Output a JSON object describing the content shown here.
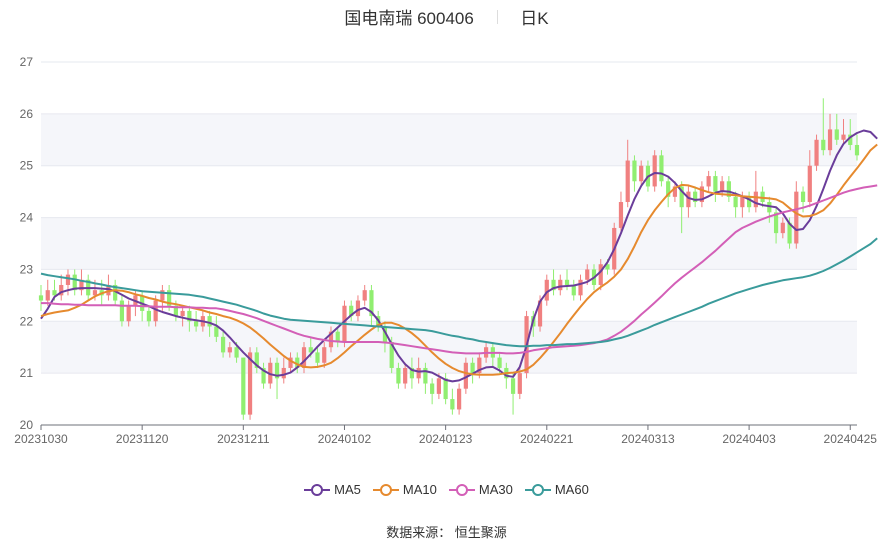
{
  "title": {
    "name": "国电南瑞 600406",
    "period": "日K"
  },
  "source_text": "数据来源： 恒生聚源",
  "chart_data": {
    "type": "candlestick",
    "title": "国电南瑞 600406",
    "ylim": [
      20,
      27
    ],
    "yticks": [
      "20",
      "21",
      "22",
      "23",
      "24",
      "25",
      "26",
      "27"
    ],
    "xticks": [
      "20231030",
      "20231120",
      "20231211",
      "20240102",
      "20240123",
      "20240221",
      "20240313",
      "20240403",
      "20240425"
    ],
    "xtick_index": [
      0,
      15,
      30,
      45,
      60,
      75,
      90,
      105,
      120
    ],
    "up_color": "#f08080",
    "down_color": "#90ee70",
    "grid": true,
    "legend_position": "bottom",
    "series": [
      {
        "name": "MA5",
        "color": "#6a3d9a",
        "values": [
          22.05,
          22.24,
          22.47,
          22.56,
          22.6,
          22.63,
          22.64,
          22.64,
          22.64,
          22.63,
          22.62,
          22.58,
          22.51,
          22.44,
          22.39,
          22.34,
          22.29,
          22.23,
          22.18,
          22.14,
          22.1,
          22.07,
          22.04,
          22.02,
          22.0,
          21.97,
          21.92,
          21.82,
          21.69,
          21.54,
          21.4,
          21.27,
          21.15,
          21.05,
          20.98,
          20.95,
          20.97,
          21.01,
          21.11,
          21.23,
          21.37,
          21.51,
          21.64,
          21.76,
          21.88,
          22.0,
          22.12,
          22.22,
          22.26,
          22.18,
          22.02,
          21.8,
          21.56,
          21.34,
          21.17,
          21.06,
          21.03,
          21.04,
          21.01,
          20.94,
          20.87,
          20.84,
          20.86,
          20.92,
          20.99,
          21.06,
          21.11,
          21.12,
          21.05,
          20.95,
          20.93,
          21.12,
          21.53,
          22.03,
          22.38,
          22.56,
          22.64,
          22.67,
          22.68,
          22.69,
          22.72,
          22.76,
          22.84,
          22.96,
          23.14,
          23.39,
          23.7,
          24.04,
          24.36,
          24.61,
          24.79,
          24.86,
          24.85,
          24.79,
          24.67,
          24.51,
          24.38,
          24.34,
          24.35,
          24.41,
          24.48,
          24.51,
          24.5,
          24.46,
          24.41,
          24.35,
          24.28,
          24.24,
          24.22,
          24.2,
          24.08,
          23.88,
          23.76,
          23.78,
          23.95,
          24.22,
          24.55,
          24.9,
          25.2,
          25.42,
          25.55,
          25.63,
          25.68,
          25.65,
          25.52
        ]
      },
      {
        "name": "MA10",
        "color": "#e68a2e",
        "values": [
          22.1,
          22.14,
          22.17,
          22.19,
          22.21,
          22.26,
          22.32,
          22.4,
          22.48,
          22.54,
          22.58,
          22.6,
          22.59,
          22.56,
          22.52,
          22.49,
          22.45,
          22.42,
          22.38,
          22.35,
          22.33,
          22.3,
          22.27,
          22.24,
          22.21,
          22.17,
          22.14,
          22.1,
          22.07,
          22.02,
          21.96,
          21.88,
          21.78,
          21.67,
          21.55,
          21.44,
          21.33,
          21.24,
          21.17,
          21.12,
          21.11,
          21.12,
          21.15,
          21.2,
          21.29,
          21.4,
          21.52,
          21.63,
          21.74,
          21.84,
          21.93,
          21.97,
          21.97,
          21.93,
          21.86,
          21.77,
          21.66,
          21.53,
          21.4,
          21.28,
          21.18,
          21.1,
          21.04,
          21.0,
          20.98,
          20.97,
          20.97,
          20.97,
          20.98,
          21.0,
          21.01,
          21.03,
          21.07,
          21.16,
          21.29,
          21.44,
          21.6,
          21.77,
          21.95,
          22.12,
          22.28,
          22.43,
          22.56,
          22.66,
          22.75,
          22.86,
          23.0,
          23.2,
          23.45,
          23.72,
          23.95,
          24.14,
          24.3,
          24.45,
          24.57,
          24.63,
          24.62,
          24.58,
          24.53,
          24.49,
          24.46,
          24.45,
          24.44,
          24.43,
          24.41,
          24.4,
          24.39,
          24.38,
          24.37,
          24.35,
          24.29,
          24.18,
          24.08,
          24.02,
          24.03,
          24.07,
          24.14,
          24.27,
          24.44,
          24.62,
          24.79,
          24.95,
          25.12,
          25.3,
          25.41
        ]
      },
      {
        "name": "MA30",
        "color": "#d35fb7",
        "values": [
          22.35,
          22.35,
          22.34,
          22.33,
          22.33,
          22.32,
          22.32,
          22.31,
          22.31,
          22.31,
          22.31,
          22.31,
          22.3,
          22.3,
          22.3,
          22.29,
          22.29,
          22.28,
          22.28,
          22.28,
          22.27,
          22.27,
          22.27,
          22.26,
          22.26,
          22.25,
          22.25,
          22.23,
          22.2,
          22.17,
          22.14,
          22.1,
          22.06,
          22.01,
          21.96,
          21.91,
          21.86,
          21.81,
          21.76,
          21.72,
          21.69,
          21.66,
          21.64,
          21.62,
          21.61,
          21.6,
          21.6,
          21.6,
          21.6,
          21.6,
          21.6,
          21.59,
          21.58,
          21.56,
          21.54,
          21.52,
          21.5,
          21.48,
          21.46,
          21.44,
          21.42,
          21.4,
          21.39,
          21.38,
          21.38,
          21.38,
          21.39,
          21.39,
          21.39,
          21.38,
          21.38,
          21.39,
          21.41,
          21.44,
          21.46,
          21.48,
          21.5,
          21.51,
          21.52,
          21.53,
          21.54,
          21.56,
          21.58,
          21.61,
          21.65,
          21.72,
          21.8,
          21.9,
          22.01,
          22.13,
          22.24,
          22.36,
          22.48,
          22.61,
          22.73,
          22.84,
          22.94,
          23.04,
          23.14,
          23.25,
          23.36,
          23.48,
          23.6,
          23.72,
          23.8,
          23.86,
          23.92,
          23.97,
          24.02,
          24.06,
          24.1,
          24.13,
          24.16,
          24.19,
          24.23,
          24.28,
          24.33,
          24.38,
          24.43,
          24.48,
          24.52,
          24.55,
          24.58,
          24.6,
          24.62
        ]
      },
      {
        "name": "MA60",
        "color": "#3a9b9b",
        "values": [
          22.92,
          22.89,
          22.87,
          22.85,
          22.83,
          22.81,
          22.78,
          22.76,
          22.73,
          22.71,
          22.68,
          22.66,
          22.64,
          22.62,
          22.6,
          22.58,
          22.57,
          22.56,
          22.55,
          22.54,
          22.53,
          22.52,
          22.51,
          22.49,
          22.47,
          22.44,
          22.41,
          22.38,
          22.35,
          22.32,
          22.28,
          22.24,
          22.2,
          22.15,
          22.11,
          22.08,
          22.05,
          22.03,
          22.02,
          22.01,
          22.0,
          21.99,
          21.98,
          21.97,
          21.96,
          21.95,
          21.94,
          21.93,
          21.92,
          21.91,
          21.9,
          21.89,
          21.88,
          21.87,
          21.86,
          21.85,
          21.84,
          21.83,
          21.81,
          21.78,
          21.75,
          21.72,
          21.7,
          21.67,
          21.65,
          21.62,
          21.6,
          21.58,
          21.56,
          21.54,
          21.53,
          21.52,
          21.52,
          21.53,
          21.53,
          21.54,
          21.54,
          21.55,
          21.56,
          21.56,
          21.57,
          21.58,
          21.59,
          21.6,
          21.62,
          21.65,
          21.68,
          21.72,
          21.77,
          21.82,
          21.87,
          21.93,
          21.98,
          22.03,
          22.08,
          22.13,
          22.18,
          22.23,
          22.28,
          22.34,
          22.39,
          22.44,
          22.49,
          22.54,
          22.58,
          22.62,
          22.66,
          22.7,
          22.73,
          22.76,
          22.79,
          22.81,
          22.83,
          22.85,
          22.88,
          22.92,
          22.97,
          23.03,
          23.1,
          23.17,
          23.25,
          23.33,
          23.41,
          23.49,
          23.6
        ]
      }
    ],
    "candles": [
      [
        22.5,
        22.4,
        22.7,
        22.2
      ],
      [
        22.4,
        22.6,
        22.8,
        22.3
      ],
      [
        22.6,
        22.5,
        22.8,
        22.4
      ],
      [
        22.5,
        22.7,
        22.9,
        22.4
      ],
      [
        22.7,
        22.9,
        23.0,
        22.5
      ],
      [
        22.9,
        22.6,
        23.0,
        22.5
      ],
      [
        22.6,
        22.8,
        23.0,
        22.5
      ],
      [
        22.8,
        22.5,
        22.9,
        22.4
      ],
      [
        22.5,
        22.6,
        22.8,
        22.4
      ],
      [
        22.6,
        22.5,
        22.8,
        22.3
      ],
      [
        22.5,
        22.7,
        22.9,
        22.4
      ],
      [
        22.7,
        22.4,
        22.8,
        22.3
      ],
      [
        22.4,
        22.0,
        22.5,
        21.9
      ],
      [
        22.0,
        22.3,
        22.4,
        21.9
      ],
      [
        22.3,
        22.5,
        22.6,
        22.1
      ],
      [
        22.5,
        22.2,
        22.6,
        22.0
      ],
      [
        22.2,
        22.0,
        22.3,
        21.9
      ],
      [
        22.0,
        22.4,
        22.5,
        21.9
      ],
      [
        22.4,
        22.6,
        22.7,
        22.2
      ],
      [
        22.6,
        22.3,
        22.7,
        22.2
      ],
      [
        22.3,
        22.1,
        22.4,
        22.0
      ],
      [
        22.1,
        22.2,
        22.3,
        21.9
      ],
      [
        22.2,
        22.0,
        22.3,
        21.8
      ],
      [
        22.0,
        21.9,
        22.2,
        21.8
      ],
      [
        21.9,
        22.1,
        22.2,
        21.8
      ],
      [
        22.1,
        21.9,
        22.2,
        21.7
      ],
      [
        21.9,
        21.7,
        22.1,
        21.6
      ],
      [
        21.7,
        21.4,
        21.8,
        21.3
      ],
      [
        21.4,
        21.5,
        21.6,
        21.3
      ],
      [
        21.5,
        21.3,
        21.6,
        21.2
      ],
      [
        21.3,
        20.2,
        21.3,
        20.1
      ],
      [
        20.2,
        21.4,
        21.5,
        20.1
      ],
      [
        21.4,
        21.1,
        21.5,
        21.0
      ],
      [
        21.1,
        20.8,
        21.2,
        20.7
      ],
      [
        20.8,
        21.2,
        21.3,
        20.7
      ],
      [
        21.2,
        20.9,
        21.3,
        20.5
      ],
      [
        20.9,
        21.1,
        21.3,
        20.8
      ],
      [
        21.1,
        21.3,
        21.4,
        21.0
      ],
      [
        21.3,
        21.1,
        21.4,
        21.0
      ],
      [
        21.1,
        21.5,
        21.6,
        21.0
      ],
      [
        21.5,
        21.4,
        21.7,
        21.3
      ],
      [
        21.4,
        21.2,
        21.5,
        21.1
      ],
      [
        21.2,
        21.5,
        21.6,
        21.1
      ],
      [
        21.5,
        21.8,
        21.9,
        21.4
      ],
      [
        21.8,
        21.6,
        21.9,
        21.5
      ],
      [
        21.6,
        22.3,
        22.4,
        21.5
      ],
      [
        22.3,
        22.1,
        22.4,
        22.0
      ],
      [
        22.1,
        22.4,
        22.5,
        22.0
      ],
      [
        22.4,
        22.6,
        22.7,
        22.3
      ],
      [
        22.6,
        22.1,
        22.7,
        21.9
      ],
      [
        22.1,
        21.9,
        22.2,
        21.8
      ],
      [
        21.9,
        21.6,
        22.0,
        21.4
      ],
      [
        21.6,
        21.1,
        21.7,
        21.0
      ],
      [
        21.1,
        20.8,
        21.2,
        20.7
      ],
      [
        20.8,
        21.1,
        21.2,
        20.7
      ],
      [
        21.1,
        20.9,
        21.3,
        20.7
      ],
      [
        20.9,
        21.1,
        21.3,
        20.8
      ],
      [
        21.1,
        20.8,
        21.2,
        20.6
      ],
      [
        20.8,
        20.6,
        20.9,
        20.4
      ],
      [
        20.6,
        20.9,
        21.0,
        20.5
      ],
      [
        20.9,
        20.5,
        21.0,
        20.4
      ],
      [
        20.5,
        20.3,
        20.7,
        20.2
      ],
      [
        20.3,
        20.7,
        20.8,
        20.2
      ],
      [
        20.7,
        21.2,
        21.3,
        20.6
      ],
      [
        21.2,
        21.0,
        21.3,
        20.8
      ],
      [
        21.0,
        21.3,
        21.4,
        20.9
      ],
      [
        21.3,
        21.5,
        21.6,
        21.2
      ],
      [
        21.5,
        21.3,
        21.6,
        21.1
      ],
      [
        21.3,
        21.1,
        21.4,
        21.0
      ],
      [
        21.1,
        20.9,
        21.2,
        20.7
      ],
      [
        20.9,
        20.6,
        21.0,
        20.2
      ],
      [
        20.6,
        21.0,
        21.1,
        20.5
      ],
      [
        21.0,
        22.1,
        22.2,
        20.9
      ],
      [
        22.1,
        21.9,
        22.2,
        21.7
      ],
      [
        21.9,
        22.4,
        22.5,
        21.8
      ],
      [
        22.4,
        22.8,
        22.9,
        22.3
      ],
      [
        22.8,
        22.6,
        23.0,
        22.5
      ],
      [
        22.6,
        22.8,
        22.9,
        22.5
      ],
      [
        22.8,
        22.7,
        23.0,
        22.6
      ],
      [
        22.7,
        22.5,
        22.8,
        22.4
      ],
      [
        22.5,
        22.8,
        22.9,
        22.4
      ],
      [
        22.8,
        23.0,
        23.1,
        22.7
      ],
      [
        23.0,
        22.7,
        23.1,
        22.6
      ],
      [
        22.7,
        23.1,
        23.2,
        22.6
      ],
      [
        23.1,
        23.0,
        23.2,
        22.9
      ],
      [
        23.0,
        23.8,
        23.9,
        22.9
      ],
      [
        23.8,
        24.3,
        24.5,
        23.7
      ],
      [
        24.3,
        25.1,
        25.5,
        24.2
      ],
      [
        25.1,
        24.7,
        25.2,
        24.5
      ],
      [
        24.7,
        25.0,
        25.1,
        24.6
      ],
      [
        25.0,
        24.6,
        25.1,
        24.5
      ],
      [
        24.6,
        25.2,
        25.3,
        24.5
      ],
      [
        25.2,
        24.7,
        25.3,
        24.6
      ],
      [
        24.7,
        24.4,
        24.8,
        24.2
      ],
      [
        24.4,
        24.6,
        24.7,
        24.3
      ],
      [
        24.6,
        24.2,
        24.7,
        23.7
      ],
      [
        24.2,
        24.5,
        24.6,
        24.0
      ],
      [
        24.5,
        24.3,
        24.6,
        24.2
      ],
      [
        24.3,
        24.6,
        24.7,
        24.2
      ],
      [
        24.6,
        24.8,
        24.9,
        24.5
      ],
      [
        24.8,
        24.5,
        24.9,
        24.3
      ],
      [
        24.5,
        24.7,
        24.8,
        24.4
      ],
      [
        24.7,
        24.4,
        24.8,
        24.3
      ],
      [
        24.4,
        24.2,
        24.5,
        24.0
      ],
      [
        24.2,
        24.4,
        24.5,
        24.0
      ],
      [
        24.4,
        24.2,
        24.5,
        24.1
      ],
      [
        24.2,
        24.5,
        24.9,
        24.1
      ],
      [
        24.5,
        24.3,
        24.6,
        24.2
      ],
      [
        24.3,
        24.1,
        24.4,
        23.9
      ],
      [
        24.1,
        23.7,
        24.2,
        23.5
      ],
      [
        23.7,
        23.9,
        24.0,
        23.6
      ],
      [
        23.9,
        23.5,
        24.0,
        23.4
      ],
      [
        23.5,
        24.5,
        24.7,
        23.4
      ],
      [
        24.5,
        24.3,
        24.6,
        24.1
      ],
      [
        24.3,
        25.0,
        25.3,
        24.2
      ],
      [
        25.0,
        25.5,
        25.6,
        24.9
      ],
      [
        25.5,
        25.3,
        26.3,
        25.2
      ],
      [
        25.3,
        25.7,
        26.0,
        25.2
      ],
      [
        25.7,
        25.5,
        26.0,
        25.4
      ],
      [
        25.5,
        25.6,
        25.9,
        25.4
      ],
      [
        25.6,
        25.4,
        25.9,
        25.3
      ],
      [
        25.4,
        25.2,
        25.6,
        25.1
      ]
    ]
  }
}
